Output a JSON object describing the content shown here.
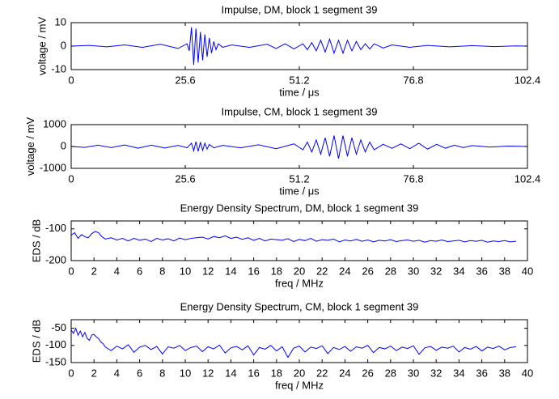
{
  "chart_data": [
    {
      "type": "line",
      "title": "Impulse, DM, block 1 segment 39",
      "x_label": "time / μs",
      "y_label": "voltage / mV",
      "color": "#0000ff",
      "x": [
        0,
        4,
        8,
        12,
        16,
        20,
        24,
        26,
        26.5,
        27,
        27.5,
        28,
        28.5,
        29,
        29.5,
        30,
        30.5,
        31,
        31.5,
        32,
        32.5,
        33,
        34,
        36,
        40,
        44,
        46,
        48,
        50,
        52,
        53,
        54,
        55,
        56,
        57,
        58,
        59,
        60,
        61,
        62,
        63,
        64,
        65,
        66,
        67,
        68,
        70,
        72,
        76,
        80,
        85,
        90,
        95,
        100,
        102.4
      ],
      "values": [
        0,
        0.3,
        -0.3,
        0.5,
        -0.5,
        0.8,
        -1,
        1,
        -2,
        8,
        -8,
        7.5,
        -7,
        6,
        -6,
        5,
        -4.5,
        3.5,
        -3,
        2,
        -1.5,
        1,
        -0.5,
        0.5,
        -0.5,
        0.8,
        -1,
        1,
        -1.2,
        1,
        -1.5,
        1.5,
        -2,
        2.5,
        -2.5,
        3,
        -3,
        2.5,
        -3,
        2.5,
        -2,
        2,
        -1.5,
        1,
        -1.2,
        1,
        -0.8,
        0.5,
        -0.5,
        0.3,
        -0.3,
        0.2,
        -0.2,
        0.1,
        0
      ],
      "xlim": [
        0,
        102.4
      ],
      "xticks": [
        0,
        25.6,
        51.2,
        76.8,
        102.4
      ],
      "ylim": [
        -10,
        10
      ],
      "yticks": [
        -10,
        0,
        10
      ]
    },
    {
      "type": "line",
      "title": "Impulse, CM, block 1 segment 39",
      "x_label": "time / μs",
      "y_label": "voltage / mV",
      "color": "#0000ff",
      "x": [
        0,
        3,
        6,
        9,
        12,
        15,
        18,
        21,
        24,
        26,
        27,
        27.5,
        28,
        28.5,
        29,
        29.5,
        30,
        30.5,
        31,
        32,
        34,
        38,
        42,
        46,
        50,
        52,
        53,
        54,
        55,
        56,
        57,
        58,
        59,
        60,
        61,
        62,
        63,
        64,
        65,
        66,
        67,
        68,
        70,
        72,
        74,
        76,
        78,
        80,
        82,
        84,
        86,
        88,
        90,
        94,
        98,
        102.4
      ],
      "values": [
        0,
        -40,
        60,
        -50,
        70,
        -80,
        60,
        -70,
        50,
        -60,
        150,
        -200,
        220,
        -220,
        200,
        -180,
        150,
        -120,
        90,
        -60,
        50,
        -60,
        80,
        -100,
        120,
        -150,
        200,
        -250,
        300,
        -350,
        400,
        -450,
        500,
        -550,
        500,
        -450,
        400,
        -350,
        300,
        -250,
        200,
        -150,
        100,
        -80,
        120,
        -100,
        150,
        -120,
        100,
        -80,
        60,
        -50,
        40,
        -30,
        20,
        0
      ],
      "xlim": [
        0,
        102.4
      ],
      "xticks": [
        0,
        25.6,
        51.2,
        76.8,
        102.4
      ],
      "ylim": [
        -1000,
        1000
      ],
      "yticks": [
        -1000,
        0,
        1000
      ]
    },
    {
      "type": "line",
      "title": "Energy Density Spectrum, DM, block 1 segment 39",
      "x_label": "freq / MHz",
      "y_label": "EDS / dB",
      "color": "#0000ff",
      "x": [
        0,
        0.3,
        0.6,
        0.9,
        1.2,
        1.5,
        1.8,
        2.1,
        2.4,
        2.7,
        3,
        3.5,
        4,
        4.5,
        5,
        5.5,
        6,
        6.5,
        7,
        7.5,
        8,
        8.5,
        9,
        9.5,
        10,
        10.5,
        11,
        11.5,
        12,
        12.5,
        13,
        13.5,
        14,
        14.5,
        15,
        15.5,
        16,
        16.5,
        17,
        17.5,
        18,
        18.5,
        19,
        19.5,
        20,
        20.5,
        21,
        21.5,
        22,
        22.5,
        23,
        23.5,
        24,
        24.5,
        25,
        25.5,
        26,
        26.5,
        27,
        27.5,
        28,
        28.5,
        29,
        29.5,
        30,
        30.5,
        31,
        31.5,
        32,
        32.5,
        33,
        33.5,
        34,
        34.5,
        35,
        35.5,
        36,
        36.5,
        37,
        37.5,
        38,
        38.5,
        39
      ],
      "values": [
        -120,
        -112,
        -130,
        -118,
        -125,
        -128,
        -115,
        -108,
        -112,
        -125,
        -132,
        -128,
        -135,
        -130,
        -138,
        -130,
        -136,
        -132,
        -140,
        -130,
        -135,
        -131,
        -138,
        -129,
        -134,
        -130,
        -128,
        -126,
        -132,
        -124,
        -128,
        -122,
        -130,
        -126,
        -133,
        -128,
        -136,
        -130,
        -138,
        -132,
        -134,
        -136,
        -131,
        -140,
        -133,
        -137,
        -130,
        -139,
        -134,
        -136,
        -132,
        -141,
        -135,
        -138,
        -133,
        -139,
        -135,
        -141,
        -136,
        -138,
        -134,
        -140,
        -137,
        -135,
        -139,
        -136,
        -142,
        -137,
        -139,
        -135,
        -140,
        -138,
        -136,
        -141,
        -137,
        -139,
        -136,
        -142,
        -138,
        -140,
        -137,
        -141,
        -139
      ],
      "xlim": [
        0,
        40
      ],
      "xticks": [
        0,
        2,
        4,
        6,
        8,
        10,
        12,
        14,
        16,
        18,
        20,
        22,
        24,
        26,
        28,
        30,
        32,
        34,
        36,
        38,
        40
      ],
      "ylim": [
        -200,
        -75
      ],
      "yticks": [
        -200,
        -100
      ]
    },
    {
      "type": "line",
      "title": "Energy Density Spectrum, CM, block 1 segment 39",
      "x_label": "freq / MHz",
      "y_label": "EDS / dB",
      "color": "#0000ff",
      "x": [
        0,
        0.2,
        0.4,
        0.6,
        0.8,
        1,
        1.2,
        1.4,
        1.6,
        1.8,
        2,
        2.2,
        2.4,
        2.6,
        2.8,
        3,
        3.5,
        4,
        4.5,
        5,
        5.5,
        6,
        6.5,
        7,
        7.5,
        8,
        8.5,
        9,
        9.5,
        10,
        10.5,
        11,
        11.5,
        12,
        12.5,
        13,
        13.5,
        14,
        14.5,
        15,
        15.5,
        16,
        16.5,
        17,
        17.5,
        18,
        18.5,
        19,
        19.5,
        20,
        20.5,
        21,
        21.5,
        22,
        22.5,
        23,
        23.5,
        24,
        24.5,
        25,
        25.5,
        26,
        26.5,
        27,
        27.5,
        28,
        28.5,
        29,
        29.5,
        30,
        30.5,
        31,
        31.5,
        32,
        32.5,
        33,
        33.5,
        34,
        34.5,
        35,
        35.5,
        36,
        36.5,
        37,
        37.5,
        38,
        38.5,
        39
      ],
      "values": [
        -55,
        -65,
        -50,
        -70,
        -58,
        -75,
        -62,
        -80,
        -85,
        -70,
        -68,
        -75,
        -80,
        -90,
        -95,
        -105,
        -115,
        -102,
        -110,
        -98,
        -120,
        -105,
        -100,
        -112,
        -103,
        -125,
        -104,
        -108,
        -100,
        -115,
        -106,
        -102,
        -118,
        -104,
        -110,
        -99,
        -122,
        -107,
        -103,
        -113,
        -101,
        -128,
        -106,
        -111,
        -100,
        -116,
        -104,
        -135,
        -108,
        -102,
        -119,
        -105,
        -109,
        -101,
        -124,
        -106,
        -112,
        -103,
        -117,
        -104,
        -108,
        -100,
        -121,
        -106,
        -110,
        -102,
        -115,
        -105,
        -109,
        -101,
        -126,
        -107,
        -103,
        -114,
        -105,
        -108,
        -102,
        -119,
        -106,
        -111,
        -103,
        -116,
        -105,
        -109,
        -102,
        -113,
        -106,
        -104
      ],
      "xlim": [
        0,
        40
      ],
      "xticks": [
        0,
        2,
        4,
        6,
        8,
        10,
        12,
        14,
        16,
        18,
        20,
        22,
        24,
        26,
        28,
        30,
        32,
        34,
        36,
        38,
        40
      ],
      "ylim": [
        -150,
        -25
      ],
      "yticks": [
        -150,
        -100,
        -50
      ]
    }
  ]
}
